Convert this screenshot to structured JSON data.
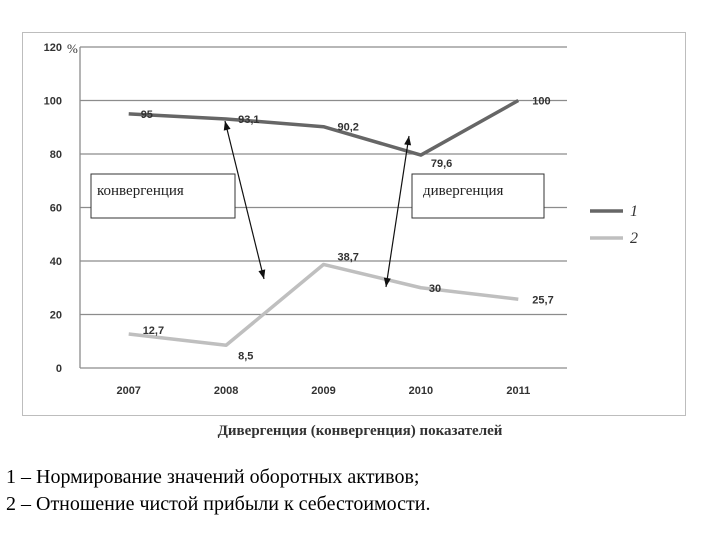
{
  "chart_data": {
    "type": "line",
    "categories": [
      "2007",
      "2008",
      "2009",
      "2010",
      "2011"
    ],
    "series": [
      {
        "name": "1",
        "values": [
          95,
          93.1,
          90.2,
          79.6,
          100
        ],
        "labels": [
          "95",
          "93,1",
          "90,2",
          "79,6",
          "100"
        ],
        "color": "#666666"
      },
      {
        "name": "2",
        "values": [
          12.7,
          8.5,
          38.7,
          30,
          25.7
        ],
        "labels": [
          "12,7",
          "8,5",
          "38,7",
          "30",
          "25,7"
        ],
        "color": "#bfbfbf"
      }
    ],
    "ylim": [
      0,
      120
    ],
    "yticks": [
      0,
      20,
      40,
      60,
      80,
      100,
      120
    ],
    "y_unit": "%",
    "grid": true,
    "legend_position": "right",
    "annotations": {
      "convergence": "конвергенция",
      "divergence": "дивергенция"
    },
    "caption": "Дивергенция (конвергенция) показателей"
  },
  "notes": {
    "line1": "1 – Нормирование значений оборотных активов;",
    "line2": "2 – Отношение чистой прибыли к себестоимости."
  }
}
